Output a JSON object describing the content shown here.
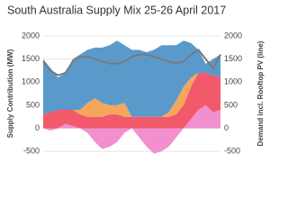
{
  "chart_data": {
    "type": "area",
    "title": "South Australia Supply Mix 25-26 April 2017",
    "y_label": "Supply Contribution (MW)",
    "y2_label": "Demand incl. Rooftop PV (line)",
    "x": [
      0,
      2,
      4,
      6,
      8,
      10,
      12,
      14,
      16,
      18,
      20,
      22,
      24,
      26,
      28,
      30,
      32,
      34,
      36,
      38,
      40,
      42,
      44,
      46,
      48
    ],
    "xlim": [
      0,
      48
    ],
    "ylim": [
      -750,
      2000
    ],
    "yticks": [
      -500,
      0,
      500,
      1000,
      1500,
      2000
    ],
    "y2lim": [
      -750,
      2000
    ],
    "y2ticks": [
      -500,
      0,
      500,
      1000,
      1500,
      2000
    ],
    "grid": true,
    "series": [
      {
        "color": "#f28fcf",
        "values": [
          0,
          -50,
          0,
          100,
          50,
          0,
          -100,
          -300,
          -450,
          -400,
          -300,
          -100,
          0,
          -200,
          -400,
          -550,
          -500,
          -400,
          -200,
          0,
          200,
          400,
          500,
          350,
          400
        ]
      },
      {
        "color": "#f2596b",
        "values": [
          300,
          350,
          400,
          300,
          350,
          300,
          250,
          250,
          250,
          300,
          300,
          250,
          250,
          250,
          250,
          250,
          250,
          250,
          300,
          500,
          700,
          800,
          700,
          800,
          700
        ]
      },
      {
        "color": "#f5a65b",
        "values": [
          0,
          0,
          0,
          0,
          0,
          100,
          300,
          400,
          300,
          200,
          200,
          300,
          0,
          0,
          0,
          0,
          0,
          100,
          300,
          400,
          200,
          0,
          0,
          0,
          0
        ]
      },
      {
        "color": "#5a9acb",
        "values": [
          1200,
          950,
          700,
          800,
          1100,
          1200,
          1150,
          1100,
          1200,
          1300,
          1400,
          1250,
          1450,
          1450,
          1400,
          1450,
          1550,
          1450,
          1200,
          1000,
          750,
          500,
          200,
          350,
          500
        ]
      },
      {
        "type": "line",
        "axis": "y2",
        "color": "#7a7a7a",
        "values": [
          1450,
          1250,
          1150,
          1200,
          1450,
          1550,
          1550,
          1500,
          1450,
          1400,
          1400,
          1450,
          1550,
          1600,
          1600,
          1550,
          1500,
          1450,
          1400,
          1450,
          1600,
          1700,
          1500,
          1300,
          1600
        ]
      }
    ]
  }
}
